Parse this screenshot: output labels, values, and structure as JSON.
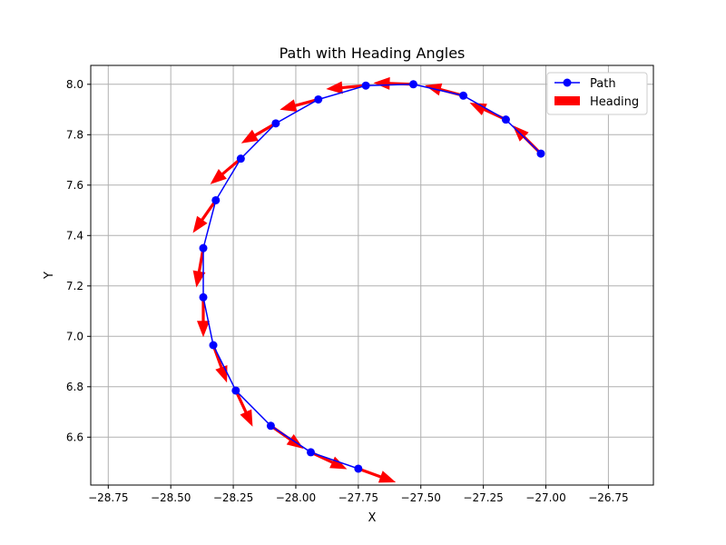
{
  "chart_data": {
    "type": "line",
    "title": "Path with Heading Angles",
    "xlabel": "X",
    "ylabel": "Y",
    "xlim": [
      -28.82,
      -26.57
    ],
    "ylim": [
      6.41,
      8.075
    ],
    "x_ticks": [
      -28.75,
      -28.5,
      -28.25,
      -28.0,
      -27.75,
      -27.5,
      -27.25,
      -27.0,
      -26.75
    ],
    "x_tick_labels": [
      "−28.75",
      "−28.50",
      "−28.25",
      "−28.00",
      "−27.75",
      "−27.50",
      "−27.25",
      "−27.00",
      "−26.75"
    ],
    "y_ticks": [
      6.6,
      6.8,
      7.0,
      7.2,
      7.4,
      7.6,
      7.8,
      8.0
    ],
    "y_tick_labels": [
      "6.6",
      "6.8",
      "7.0",
      "7.2",
      "7.4",
      "7.6",
      "7.8",
      "8.0"
    ],
    "grid": true,
    "legend_position": "top-right",
    "series": [
      {
        "name": "Path",
        "color": "#0000ff",
        "marker": "circle",
        "x": [
          -27.02,
          -27.16,
          -27.33,
          -27.53,
          -27.72,
          -27.91,
          -28.08,
          -28.22,
          -28.32,
          -28.37,
          -28.37,
          -28.33,
          -28.24,
          -28.1,
          -27.94,
          -27.75
        ],
        "y": [
          7.725,
          7.86,
          7.955,
          8.0,
          7.995,
          7.94,
          7.845,
          7.705,
          7.54,
          7.35,
          7.155,
          6.965,
          6.785,
          6.645,
          6.54,
          6.475
        ]
      },
      {
        "name": "Heading",
        "color": "#ff0000",
        "type": "quiver",
        "angles_deg": [
          135,
          155,
          165,
          178,
          185,
          195,
          210,
          220,
          235,
          260,
          270,
          290,
          295,
          325,
          335,
          340
        ]
      }
    ]
  }
}
